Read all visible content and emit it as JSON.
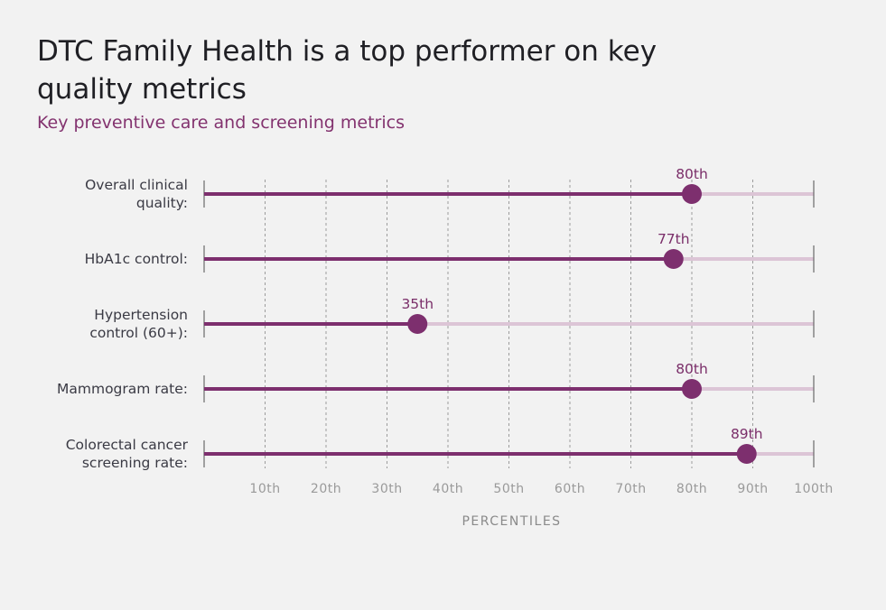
{
  "title": "DTC Family Health is a top performer on key quality metrics",
  "subtitle": "Key preventive care and screening metrics",
  "colors": {
    "accent": "#7d2f6e",
    "track": "#dcc5d6",
    "tick": "#8a8a8a",
    "label": "#3a3a44"
  },
  "chart_data": {
    "type": "dot",
    "title": "DTC Family Health is a top performer on key quality metrics",
    "subtitle": "Key preventive care and screening metrics",
    "xlabel": "PERCENTILES",
    "xlim": [
      0,
      100
    ],
    "xticks": [
      10,
      20,
      30,
      40,
      50,
      60,
      70,
      80,
      90,
      100
    ],
    "xtick_labels": [
      "10th",
      "20th",
      "30th",
      "40th",
      "50th",
      "60th",
      "70th",
      "80th",
      "90th",
      "100th"
    ],
    "grid": true,
    "categories": [
      [
        "Overall clinical",
        "quality:"
      ],
      [
        "HbA1c control:"
      ],
      [
        "Hypertension",
        "control (60+):"
      ],
      [
        "Mammogram rate:"
      ],
      [
        "Colorectal cancer",
        "screening rate:"
      ]
    ],
    "values": [
      80,
      77,
      35,
      80,
      89
    ],
    "value_labels": [
      "80th",
      "77th",
      "35th",
      "80th",
      "89th"
    ]
  }
}
